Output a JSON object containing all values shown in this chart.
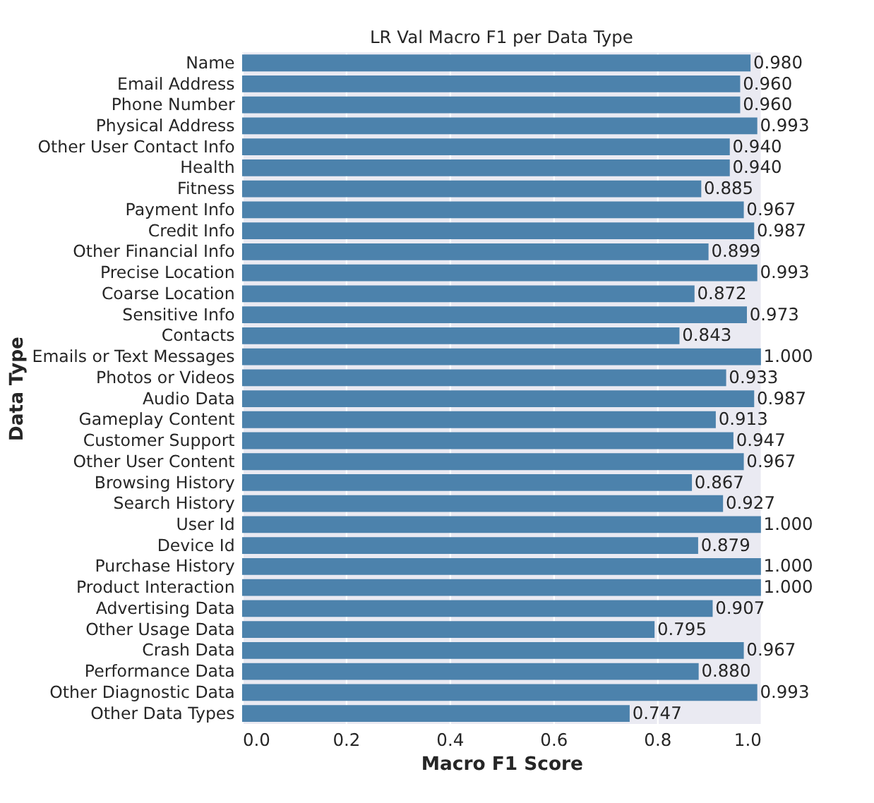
{
  "chart_data": {
    "type": "bar",
    "orientation": "horizontal",
    "title": "LR Val Macro F1 per Data Type",
    "xlabel": "Macro F1 Score",
    "ylabel": "Data Type",
    "categories": [
      "Name",
      "Email Address",
      "Phone Number",
      "Physical Address",
      "Other User Contact Info",
      "Health",
      "Fitness",
      "Payment Info",
      "Credit Info",
      "Other Financial Info",
      "Precise Location",
      "Coarse Location",
      "Sensitive Info",
      "Contacts",
      "Emails or Text Messages",
      "Photos or Videos",
      "Audio Data",
      "Gameplay Content",
      "Customer Support",
      "Other User Content",
      "Browsing History",
      "Search History",
      "User Id",
      "Device Id",
      "Purchase History",
      "Product Interaction",
      "Advertising Data",
      "Other Usage Data",
      "Crash Data",
      "Performance Data",
      "Other Diagnostic Data",
      "Other Data Types"
    ],
    "values": [
      0.98,
      0.96,
      0.96,
      0.993,
      0.94,
      0.94,
      0.885,
      0.967,
      0.987,
      0.899,
      0.993,
      0.872,
      0.973,
      0.843,
      1.0,
      0.933,
      0.987,
      0.913,
      0.947,
      0.967,
      0.867,
      0.927,
      1.0,
      0.879,
      1.0,
      1.0,
      0.907,
      0.795,
      0.967,
      0.88,
      0.993,
      0.747
    ],
    "value_labels": [
      "0.980",
      "0.960",
      "0.960",
      "0.993",
      "0.940",
      "0.940",
      "0.885",
      "0.967",
      "0.987",
      "0.899",
      "0.993",
      "0.872",
      "0.973",
      "0.843",
      "1.000",
      "0.933",
      "0.987",
      "0.913",
      "0.947",
      "0.967",
      "0.867",
      "0.927",
      "1.000",
      "0.879",
      "1.000",
      "1.000",
      "0.907",
      "0.795",
      "0.967",
      "0.880",
      "0.993",
      "0.747"
    ],
    "color": "#4c82ac",
    "xlim": [
      0,
      1
    ],
    "xticks": [
      {
        "value": 0,
        "label": "0.0"
      },
      {
        "value": 0.2,
        "label": "0.2"
      },
      {
        "value": 0.4,
        "label": "0.4"
      },
      {
        "value": 0.6,
        "label": "0.6"
      },
      {
        "value": 0.8,
        "label": "0.8"
      },
      {
        "value": 1,
        "label": "1.0"
      }
    ],
    "grid": "x"
  }
}
